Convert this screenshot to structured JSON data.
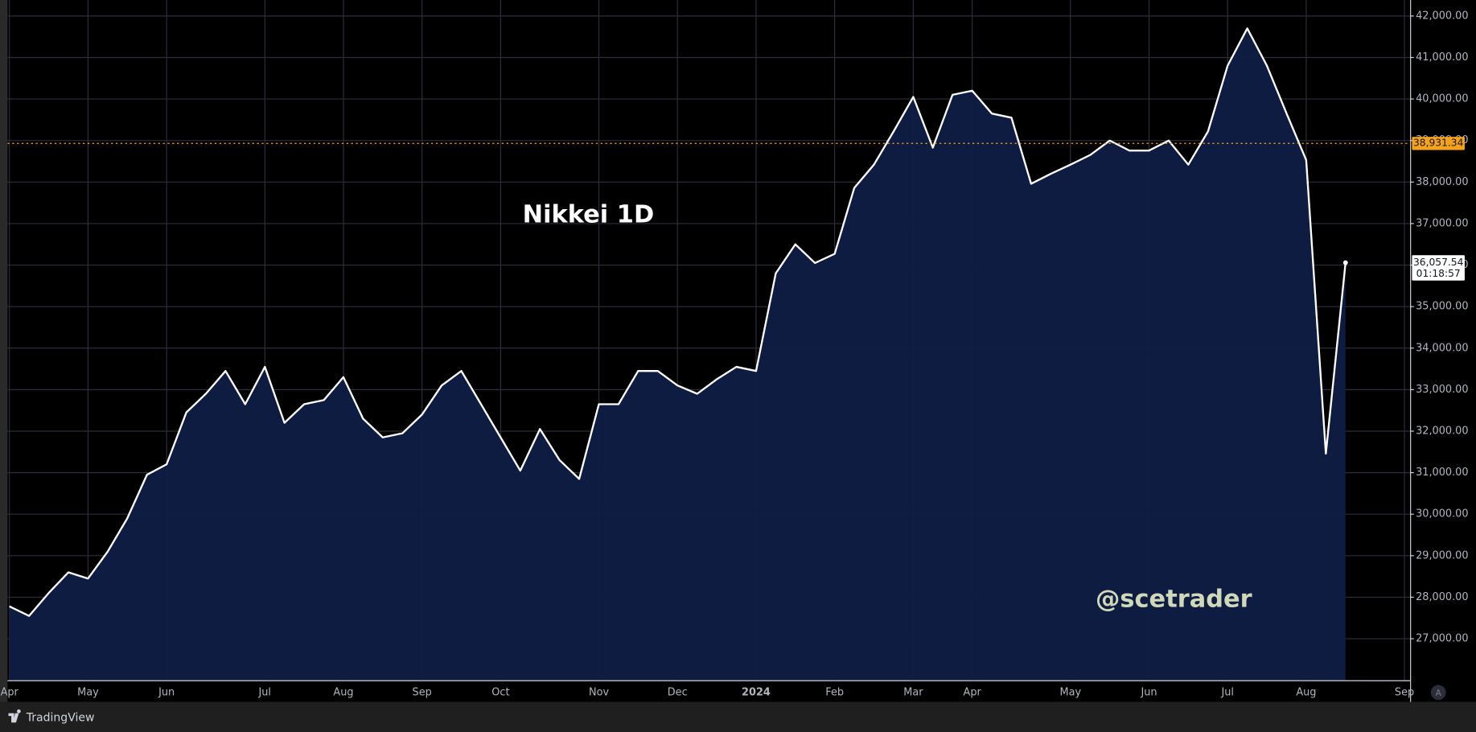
{
  "chart_data": {
    "type": "area",
    "title": "Nikkei 1D",
    "watermark": "@scetrader",
    "categories": [
      "Apr",
      null,
      null,
      null,
      "May",
      null,
      null,
      null,
      "Jun",
      null,
      null,
      null,
      null,
      "Jul",
      null,
      null,
      null,
      "Aug",
      null,
      null,
      null,
      "Sep",
      null,
      null,
      null,
      "Oct",
      null,
      null,
      null,
      null,
      "Nov",
      null,
      null,
      null,
      "Dec",
      null,
      null,
      null,
      "2024",
      null,
      null,
      null,
      "Feb",
      null,
      null,
      null,
      "Mar",
      null,
      null,
      "Apr",
      null,
      null,
      null,
      null,
      "May",
      null,
      null,
      null,
      "Jun",
      null,
      null,
      null,
      "Jul",
      null,
      null,
      null,
      "Aug",
      null,
      null,
      null,
      null,
      "Sep"
    ],
    "series": [
      {
        "color": "#ffffff",
        "fill": "#0f1d44",
        "values": [
          27780,
          27550,
          28100,
          28600,
          28450,
          29100,
          29900,
          30950,
          31200,
          32450,
          32900,
          33450,
          32650,
          33550,
          32200,
          32650,
          32750,
          33300,
          32300,
          31850,
          31950,
          32400,
          33100,
          33450,
          32650,
          31850,
          31050,
          32050,
          31300,
          30850,
          32650,
          32650,
          33450,
          33450,
          33100,
          32900,
          33250,
          33550,
          33450,
          35800,
          36500,
          36050,
          36270,
          37860,
          38420,
          39220,
          40050,
          38830,
          40100,
          40200,
          39650,
          39550,
          37960,
          38200,
          38420,
          38650,
          39000,
          38760,
          38760,
          39000,
          38420,
          39220,
          40800,
          41700,
          40800,
          39650,
          38530,
          31460,
          36057.54,
          null,
          null,
          null
        ]
      }
    ],
    "ylim": [
      26000,
      42385
    ],
    "yticks": [
      {
        "value": 27000,
        "label": "27,000.00"
      },
      {
        "value": 28000,
        "label": "28,000.00"
      },
      {
        "value": 29000,
        "label": "29,000.00"
      },
      {
        "value": 30000,
        "label": "30,000.00"
      },
      {
        "value": 31000,
        "label": "31,000.00"
      },
      {
        "value": 32000,
        "label": "32,000.00"
      },
      {
        "value": 33000,
        "label": "33,000.00"
      },
      {
        "value": 34000,
        "label": "34,000.00"
      },
      {
        "value": 35000,
        "label": "35,000.00"
      },
      {
        "value": 36000,
        "label": "36,000.00"
      },
      {
        "value": 37000,
        "label": "37,000.00"
      },
      {
        "value": 38000,
        "label": "38,000.00"
      },
      {
        "value": 39000,
        "label": "39,000.00"
      },
      {
        "value": 40000,
        "label": "40,000.00"
      },
      {
        "value": 41000,
        "label": "41,000.00"
      },
      {
        "value": 42000,
        "label": "42,000.00"
      }
    ],
    "grid": true,
    "price_line": {
      "value": 38931.34,
      "label": "38,931.34",
      "color": "#f7a21b"
    },
    "last_price": {
      "value": 36057.54,
      "label": "36,057.54",
      "countdown": "01:18:57"
    }
  },
  "footer": {
    "brand": "TradingView",
    "scale_button": "A"
  }
}
